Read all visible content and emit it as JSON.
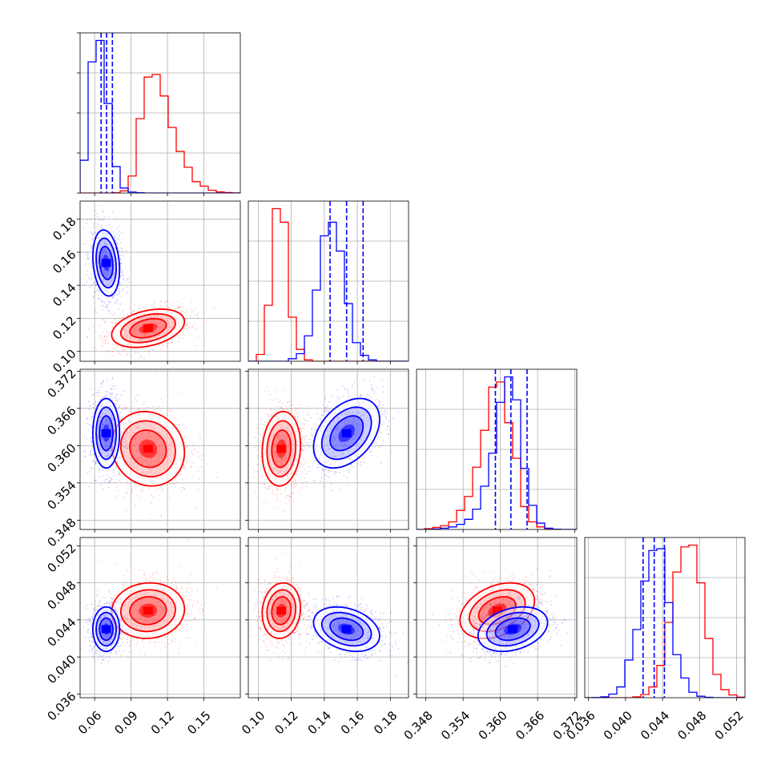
{
  "chart_data": {
    "type": "corner",
    "grid": true,
    "params": [
      {
        "ticks": [
          0.06,
          0.09,
          0.12,
          0.15
        ],
        "range": [
          0.048,
          0.18
        ]
      },
      {
        "ticks": [
          0.1,
          0.12,
          0.14,
          0.16,
          0.18
        ],
        "range": [
          0.094,
          0.191
        ]
      },
      {
        "ticks": [
          0.348,
          0.354,
          0.36,
          0.366,
          0.372
        ],
        "range": [
          0.3465,
          0.3723
        ]
      },
      {
        "ticks": [
          0.036,
          0.04,
          0.044,
          0.048,
          0.052
        ],
        "range": [
          0.0356,
          0.0529
        ]
      }
    ],
    "series": [
      {
        "color": "#ff0000",
        "mean": [
          0.104,
          0.114,
          0.3595,
          0.045
        ],
        "sd": [
          0.015,
          0.0058,
          0.003,
          0.0015
        ],
        "corr": [
          [
            1,
            0.35,
            -0.1,
            0.05
          ],
          [
            0.35,
            1,
            0.1,
            0.1
          ],
          [
            -0.1,
            0.1,
            1,
            0.35
          ],
          [
            0.05,
            0.1,
            0.35,
            1
          ]
        ],
        "hist": [
          {
            "edges_from": 0.048,
            "bin_width": 0.0066,
            "counts": [
              0,
              0,
              0,
              0,
              2,
              18,
              135,
              590,
              920,
              940,
              770,
              520,
              330,
              205,
              90,
              55,
              22,
              9,
              4,
              1
            ]
          },
          {
            "edges_from": 0.094,
            "bin_width": 0.00485,
            "counts": [
              0,
              40,
              330,
              900,
              820,
              260,
              70,
              8,
              0,
              0,
              0,
              0,
              0,
              0,
              0,
              0,
              0,
              0,
              0,
              0
            ]
          },
          {
            "edges_from": 0.3465,
            "bin_width": 0.00129,
            "counts": [
              0,
              3,
              8,
              15,
              30,
              75,
              130,
              245,
              390,
              560,
              580,
              420,
              280,
              90,
              30,
              10,
              3,
              1,
              0,
              0
            ]
          },
          {
            "edges_from": 0.0356,
            "bin_width": 0.000865,
            "counts": [
              0,
              0,
              0,
              0,
              0,
              0,
              5,
              18,
              60,
              180,
              420,
              700,
              840,
              850,
              640,
              330,
              130,
              45,
              15,
              3
            ]
          }
        ]
      },
      {
        "color": "#0000ff",
        "mean": [
          0.0695,
          0.1535,
          0.362,
          0.043
        ],
        "sd": [
          0.0055,
          0.01,
          0.0028,
          0.0012
        ],
        "corr": [
          [
            1,
            -0.2,
            0.0,
            0.0
          ],
          [
            -0.2,
            1,
            0.4,
            -0.3
          ],
          [
            0.0,
            0.4,
            1,
            0.3
          ],
          [
            0.0,
            -0.3,
            0.3,
            1
          ]
        ],
        "hist": [
          {
            "edges_from": 0.048,
            "bin_width": 0.0066,
            "counts": [
              260,
              1040,
              1210,
              710,
              210,
              40,
              8,
              2,
              0,
              0,
              0,
              0,
              0,
              0,
              0,
              0,
              0,
              0,
              0,
              0
            ]
          },
          {
            "edges_from": 0.094,
            "bin_width": 0.00485,
            "counts": [
              0,
              0,
              0,
              0,
              0,
              15,
              45,
              150,
              420,
              740,
              820,
              650,
              340,
              110,
              35,
              8,
              0,
              0,
              0,
              0
            ]
          },
          {
            "edges_from": 0.3465,
            "bin_width": 0.00129,
            "counts": [
              0,
              0,
              2,
              5,
              10,
              20,
              40,
              80,
              170,
              300,
              500,
              600,
              510,
              240,
              95,
              25,
              5,
              1,
              0,
              0
            ]
          },
          {
            "edges_from": 0.0356,
            "bin_width": 0.000865,
            "counts": [
              0,
              1,
              5,
              20,
              60,
              210,
              380,
              650,
              820,
              830,
              530,
              240,
              110,
              30,
              8,
              2,
              0,
              0,
              0,
              0
            ]
          }
        ]
      }
    ],
    "quantile_lines": {
      "color": "#0000ff",
      "values": [
        [
          0.0653,
          0.0698,
          0.0746
        ],
        [
          0.1435,
          0.1535,
          0.1635
        ],
        [
          0.3592,
          0.3617,
          0.3643
        ],
        [
          0.0419,
          0.0431,
          0.0442
        ]
      ]
    }
  }
}
